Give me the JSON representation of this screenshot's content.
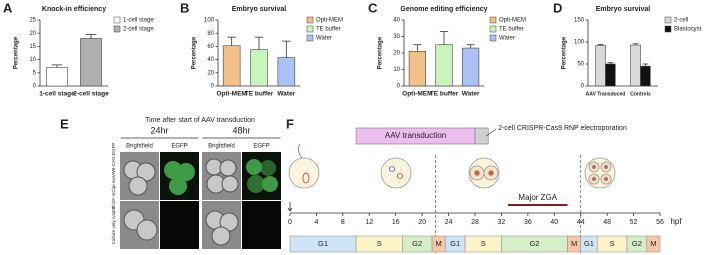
{
  "chart_data": [
    {
      "type": "bar",
      "panel": "A",
      "title": "Knock-in efficiency",
      "y_label": "Percentage",
      "categories": [
        "1-cell stage",
        "2-cell stage"
      ],
      "values": [
        7,
        18
      ],
      "errors": [
        1,
        1.5
      ],
      "colors": [
        "#ffffff",
        "#b0b0b0"
      ],
      "ylim": [
        0,
        25
      ],
      "yticks": [
        0,
        5,
        10,
        15,
        20,
        25
      ]
    },
    {
      "type": "bar",
      "panel": "B",
      "title": "Embryo survival",
      "y_label": "Percentage",
      "categories": [
        "Opti-MEM",
        "TE buffer",
        "Water"
      ],
      "values": [
        61,
        55,
        43
      ],
      "errors": [
        13,
        19,
        25
      ],
      "colors": [
        "#f4c08a",
        "#c8f5ba",
        "#aac2f5"
      ],
      "ylim": [
        0,
        100
      ],
      "yticks": [
        0,
        20,
        40,
        60,
        80,
        100
      ]
    },
    {
      "type": "bar",
      "panel": "C",
      "title": "Genome editing efficiency",
      "y_label": "Percentage",
      "categories": [
        "Opti-MEM",
        "TE buffer",
        "Water"
      ],
      "values": [
        21,
        25,
        23
      ],
      "errors": [
        4,
        8,
        2
      ],
      "colors": [
        "#f4c08a",
        "#c8f5ba",
        "#aac2f5"
      ],
      "ylim": [
        0,
        40
      ],
      "yticks": [
        0,
        10,
        20,
        30,
        40
      ]
    },
    {
      "type": "grouped-bar",
      "panel": "D",
      "title": "Embryo survival",
      "y_label": "Percentage",
      "categories": [
        "AAV Transduced",
        "Controls"
      ],
      "series": [
        {
          "name": "2-cell",
          "color": "#d9d9d9",
          "values": [
            92,
            93
          ],
          "errors": [
            2,
            3
          ]
        },
        {
          "name": "Blastocyst",
          "color": "#111111",
          "values": [
            50,
            45
          ],
          "errors": [
            3,
            5
          ]
        }
      ],
      "ylim": [
        0,
        150
      ],
      "yticks": [
        0,
        50,
        100,
        150
      ]
    }
  ],
  "panel_e": {
    "label": "E",
    "title": "Time after start of AAV transduction",
    "times": [
      "24hr",
      "48hr"
    ],
    "columns": [
      "Brightfield",
      "EGFP",
      "Brightfield",
      "EGFP"
    ],
    "rows": [
      "3×10⁹ GC/µl ssAAV6-CAG-EGFP",
      "Culture only control"
    ]
  },
  "panel_f": {
    "label": "F",
    "aav_label": "AAV transduction",
    "aav_span": [
      10,
      28
    ],
    "electroporation_label": "2-cell CRISPR-Cas9 RNP electroporation",
    "electroporation_span": [
      28,
      30
    ],
    "zga_label": "Major ZGA",
    "zga_span": [
      33,
      42
    ],
    "divisions": [
      22,
      44
    ],
    "xlim": [
      0,
      56
    ],
    "xticks": [
      0,
      4,
      8,
      12,
      16,
      20,
      24,
      28,
      32,
      36,
      40,
      44,
      48,
      52,
      56
    ],
    "x_unit": "hpf",
    "phase_colors": {
      "G1": "#cfe5f5",
      "S": "#fdf3c8",
      "G2": "#d6efc9",
      "M": "#f5c6a8"
    },
    "phases": [
      {
        "name": "G1",
        "start": 0,
        "end": 10
      },
      {
        "name": "S",
        "start": 10,
        "end": 17
      },
      {
        "name": "G2",
        "start": 17,
        "end": 21.5
      },
      {
        "name": "M",
        "start": 21.5,
        "end": 23.5
      },
      {
        "name": "G1",
        "start": 23.5,
        "end": 26.5
      },
      {
        "name": "S",
        "start": 26.5,
        "end": 32
      },
      {
        "name": "G2",
        "start": 32,
        "end": 42
      },
      {
        "name": "M",
        "start": 42,
        "end": 44
      },
      {
        "name": "G1",
        "start": 44,
        "end": 46.5
      },
      {
        "name": "S",
        "start": 46.5,
        "end": 51
      },
      {
        "name": "G2",
        "start": 51,
        "end": 54
      },
      {
        "name": "M",
        "start": 54,
        "end": 56
      }
    ]
  }
}
